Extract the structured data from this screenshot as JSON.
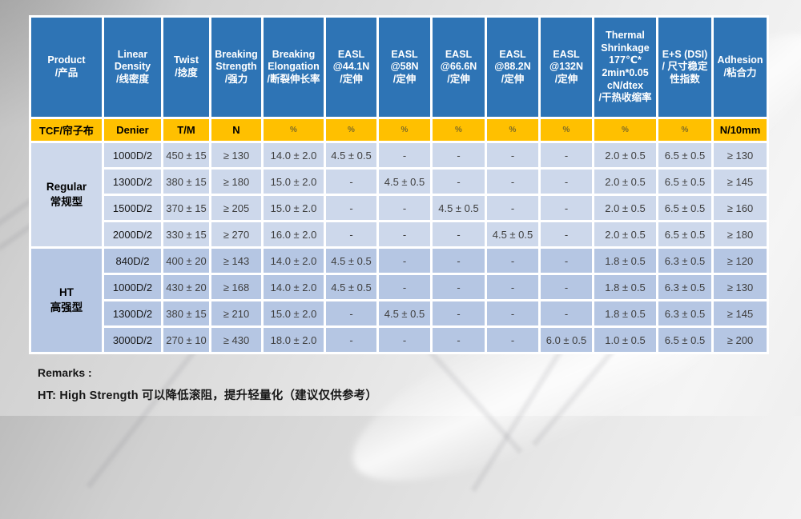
{
  "colors": {
    "header_bg": "#2e74b5",
    "header_text": "#ffffff",
    "unit_row_bg": "#ffc000",
    "regular_row_bg": "#cdd8eb",
    "ht_row_bg": "#b5c6e3",
    "grid_line": "#ffffff"
  },
  "table": {
    "columns": [
      {
        "id": "product",
        "label": "Product\n/产品",
        "unit": "TCF/帘子布"
      },
      {
        "id": "density",
        "label": "Linear\nDensity\n/线密度",
        "unit": "Denier"
      },
      {
        "id": "twist",
        "label": "Twist\n/捻度",
        "unit": "T/M"
      },
      {
        "id": "strength",
        "label": "Breaking\nStrength\n/强力",
        "unit": "N"
      },
      {
        "id": "elongation",
        "label": "Breaking\nElongation\n/断裂伸长率",
        "unit": "%"
      },
      {
        "id": "easl-44-1n",
        "label": "EASL\n@44.1N\n/定伸",
        "unit": "%"
      },
      {
        "id": "easl-58n",
        "label": "EASL\n@58N\n/定伸",
        "unit": "%"
      },
      {
        "id": "easl-66-6n",
        "label": "EASL\n@66.6N\n/定伸",
        "unit": "%"
      },
      {
        "id": "easl-88-2n",
        "label": "EASL\n@88.2N\n/定伸",
        "unit": "%"
      },
      {
        "id": "easl-132n",
        "label": "EASL\n@132N\n/定伸",
        "unit": "%"
      },
      {
        "id": "shrinkage",
        "label": "Thermal\nShrinkage\n177℃*\n2min*0.05\ncN/dtex\n/干热收缩率",
        "unit": "%"
      },
      {
        "id": "dsi",
        "label": "E+S (DSI)\n/ 尺寸稳定性指数",
        "unit": "%"
      },
      {
        "id": "adhesion",
        "label": "Adhesion\n/粘合力",
        "unit": "N/10mm"
      }
    ],
    "groups": [
      {
        "id": "regular",
        "label": "Regular\n常规型",
        "rows": [
          [
            "1000D/2",
            "450 ± 15",
            "≥ 130",
            "14.0 ± 2.0",
            "4.5 ± 0.5",
            "-",
            "-",
            "-",
            "-",
            "2.0 ± 0.5",
            "6.5 ± 0.5",
            "≥ 130"
          ],
          [
            "1300D/2",
            "380 ± 15",
            "≥ 180",
            "15.0 ± 2.0",
            "-",
            "4.5 ± 0.5",
            "-",
            "-",
            "-",
            "2.0 ± 0.5",
            "6.5 ± 0.5",
            "≥ 145"
          ],
          [
            "1500D/2",
            "370 ± 15",
            "≥ 205",
            "15.0 ± 2.0",
            "-",
            "-",
            "4.5 ± 0.5",
            "-",
            "-",
            "2.0 ± 0.5",
            "6.5 ± 0.5",
            "≥ 160"
          ],
          [
            "2000D/2",
            "330 ± 15",
            "≥ 270",
            "16.0 ± 2.0",
            "-",
            "-",
            "-",
            "4.5 ± 0.5",
            "-",
            "2.0 ± 0.5",
            "6.5 ± 0.5",
            "≥ 180"
          ]
        ]
      },
      {
        "id": "ht",
        "label": "HT\n高强型",
        "rows": [
          [
            "840D/2",
            "400 ± 20",
            "≥ 143",
            "14.0 ± 2.0",
            "4.5 ± 0.5",
            "-",
            "-",
            "-",
            "-",
            "1.8 ± 0.5",
            "6.3 ± 0.5",
            "≥ 120"
          ],
          [
            "1000D/2",
            "430 ± 20",
            "≥ 168",
            "14.0 ± 2.0",
            "4.5 ± 0.5",
            "-",
            "-",
            "-",
            "-",
            "1.8 ± 0.5",
            "6.3 ± 0.5",
            "≥ 130"
          ],
          [
            "1300D/2",
            "380 ± 15",
            "≥ 210",
            "15.0 ± 2.0",
            "-",
            "4.5 ± 0.5",
            "-",
            "-",
            "-",
            "1.8 ± 0.5",
            "6.3 ± 0.5",
            "≥ 145"
          ],
          [
            "3000D/2",
            "270 ± 10",
            "≥ 430",
            "18.0 ± 2.0",
            "-",
            "-",
            "-",
            "-",
            "6.0 ± 0.5",
            "1.0 ± 0.5",
            "6.5 ± 0.5",
            "≥ 200"
          ]
        ]
      }
    ]
  },
  "remarks": {
    "title": "Remarks :",
    "line": "HT:  High Strength  可以降低滚阻，提升轻量化（建议仅供参考）"
  }
}
